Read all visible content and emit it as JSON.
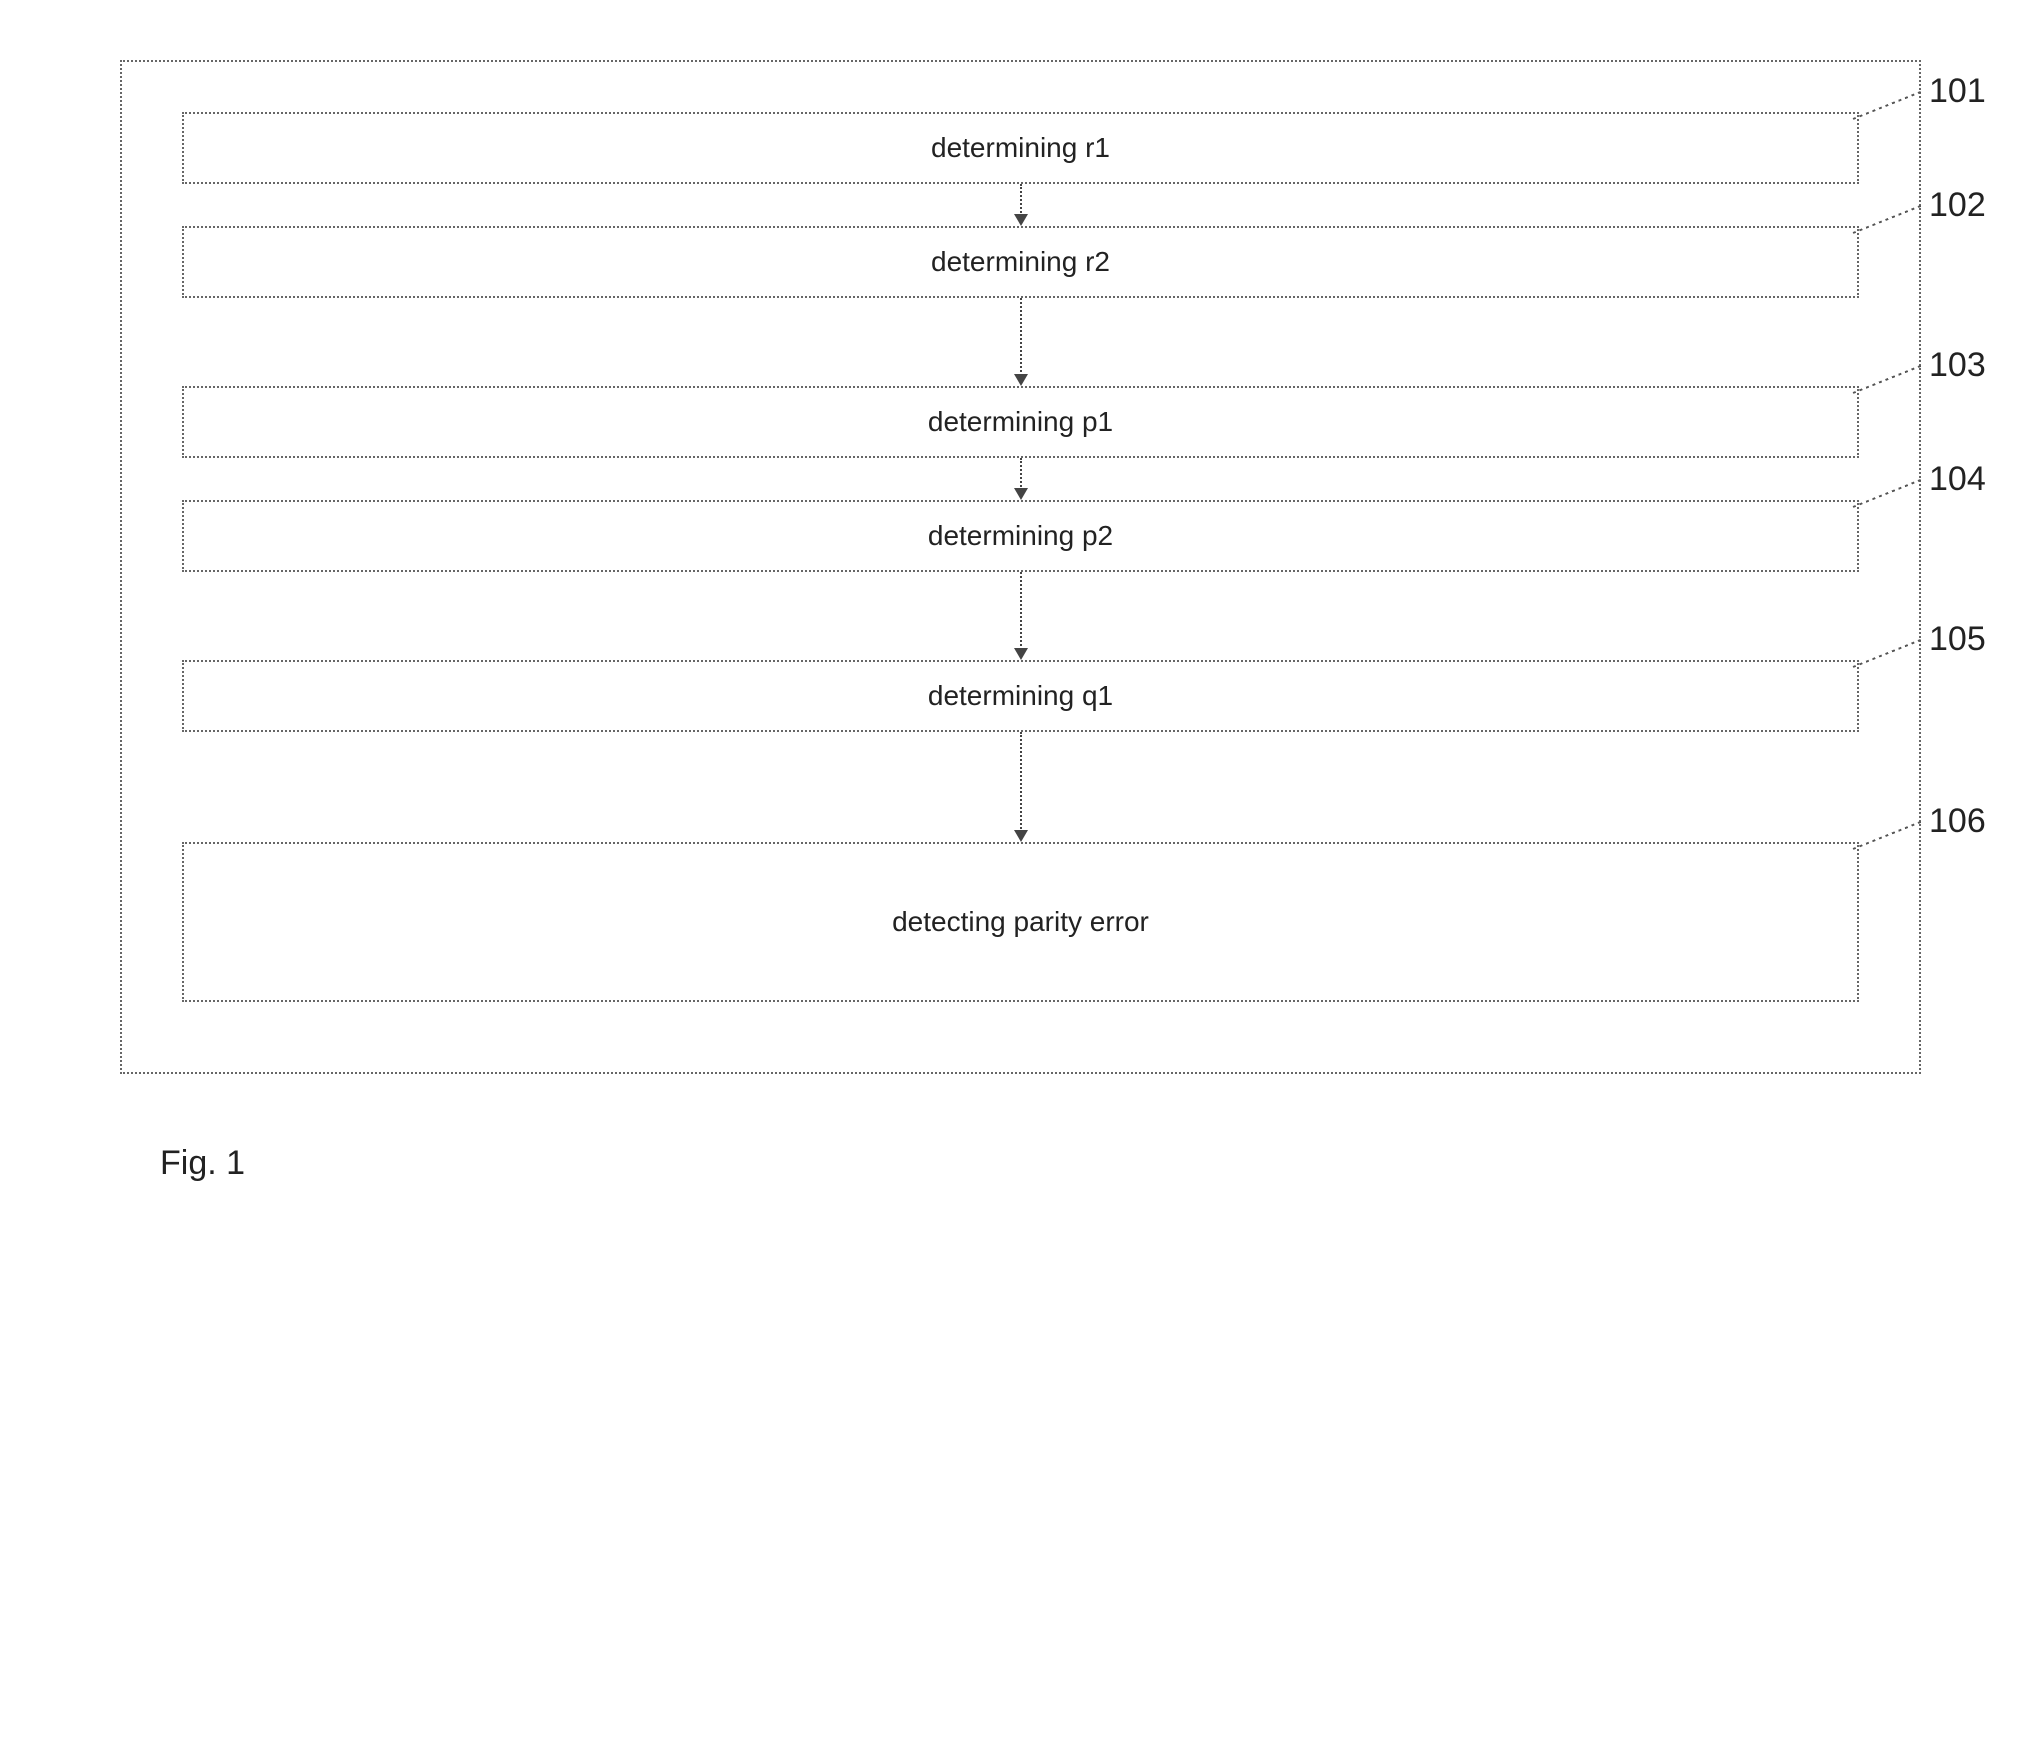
{
  "diagram": {
    "type": "flowchart",
    "outer_border_style": "dotted",
    "outer_border_color": "#666666",
    "box_border_style": "dotted",
    "box_border_color": "#666666",
    "arrow_style": "dotted",
    "arrow_color": "#444444",
    "background_color": "#ffffff",
    "text_color": "#222222",
    "label_fontsize": 28,
    "ref_fontsize": 34,
    "steps": [
      {
        "label": "determining r1",
        "ref": "101",
        "height": "short",
        "arrow_after_len": 32
      },
      {
        "label": "determining r2",
        "ref": "102",
        "height": "short",
        "arrow_after_len": 78
      },
      {
        "label": "determining p1",
        "ref": "103",
        "height": "short",
        "arrow_after_len": 32
      },
      {
        "label": "determining p2",
        "ref": "104",
        "height": "short",
        "arrow_after_len": 78
      },
      {
        "label": "determining q1",
        "ref": "105",
        "height": "short",
        "arrow_after_len": 100
      },
      {
        "label": "detecting parity error",
        "ref": "106",
        "height": "tall",
        "arrow_after_len": 0
      }
    ],
    "caption": "Fig. 1"
  }
}
